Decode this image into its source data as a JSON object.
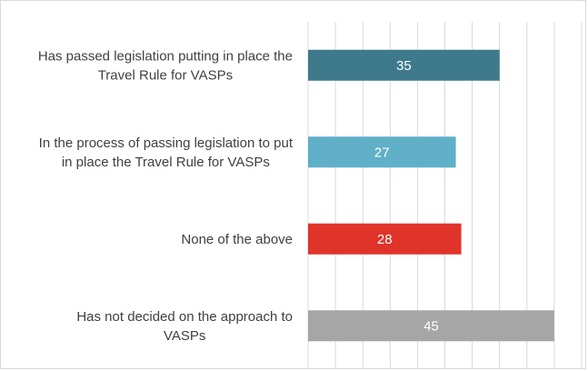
{
  "chart_data": {
    "type": "bar",
    "orientation": "horizontal",
    "categories": [
      [
        "Has passed legislation putting in place the",
        "Travel Rule for VASPs"
      ],
      [
        "In the process of passing legislation to put",
        "in place the Travel Rule for VASPs"
      ],
      [
        "None of the above"
      ],
      [
        "Has not decided on the approach to",
        "VASPs"
      ]
    ],
    "values": [
      35,
      27,
      28,
      45
    ],
    "colors": [
      "#3e7a8c",
      "#5fb0c8",
      "#e0332a",
      "#a6a6a6"
    ],
    "xlim": [
      0,
      50
    ],
    "grid": true,
    "data_labels": true,
    "title": "",
    "xlabel": "",
    "ylabel": ""
  }
}
